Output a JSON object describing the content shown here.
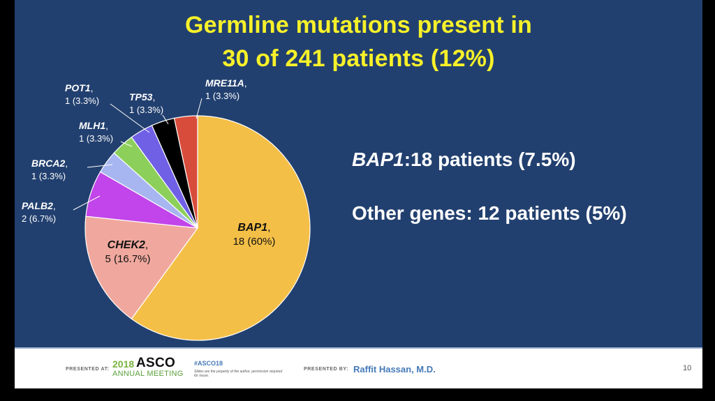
{
  "title": {
    "line1": "Germline mutations present in",
    "line2": "30 of 241 patients (12%)"
  },
  "stats": {
    "bap1_gene": "BAP1",
    "bap1_text": ":18 patients (7.5%)",
    "other_text": "Other genes: 12 patients (5%)"
  },
  "chart_data": {
    "type": "pie",
    "start": "12 o'clock",
    "direction": "clockwise",
    "slices": [
      {
        "gene": "BAP1",
        "count": 18,
        "percent_label": "18 (60%)",
        "color": "#f4bf47"
      },
      {
        "gene": "CHEK2",
        "count": 5,
        "percent_label": "5 (16.7%)",
        "color": "#f0a89e"
      },
      {
        "gene": "PALB2",
        "count": 2,
        "percent_label": "2 (6.7%)",
        "color": "#c145ea"
      },
      {
        "gene": "BRCA2",
        "count": 1,
        "percent_label": "1 (3.3%)",
        "color": "#a7b6f0"
      },
      {
        "gene": "MLH1",
        "count": 1,
        "percent_label": "1 (3.3%)",
        "color": "#8ccf5a"
      },
      {
        "gene": "POT1",
        "count": 1,
        "percent_label": "1 (3.3%)",
        "color": "#7060e6"
      },
      {
        "gene": "TP53",
        "count": 1,
        "percent_label": "1 (3.3%)",
        "color": "#000000"
      },
      {
        "gene": "MRE11A",
        "count": 1,
        "percent_label": "1 (3.3%)",
        "color": "#d84c3c"
      }
    ]
  },
  "footer": {
    "presented_at": "PRESENTED AT:",
    "asco_year": "2018",
    "asco_word": "ASCO",
    "asco_annual": "ANNUAL MEETING",
    "hashtag": "#ASCO18",
    "disclaimer": "Slides are the property of the author, permission required for reuse.",
    "presented_by": "PRESENTED BY:",
    "presenter": "Raffit Hassan, M.D.",
    "page": "10"
  }
}
